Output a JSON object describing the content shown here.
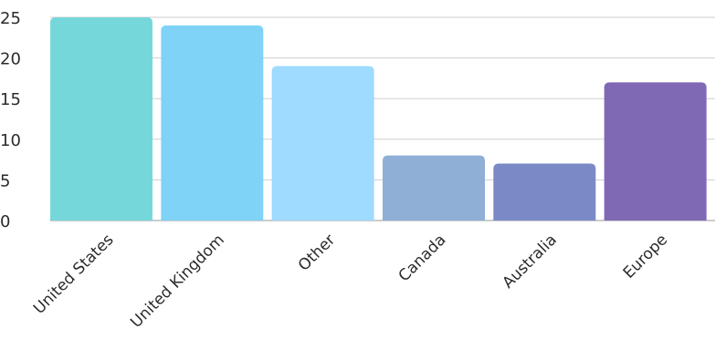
{
  "chart_data": {
    "type": "bar",
    "title": "",
    "xlabel": "",
    "ylabel": "",
    "categories": [
      "United States",
      "United Kingdom",
      "Other",
      "Canada",
      "Australia",
      "Europe"
    ],
    "values": [
      25,
      24,
      19,
      8,
      7,
      17
    ],
    "colors": [
      "#76d7da",
      "#7fd3f6",
      "#9fdaff",
      "#8fafd6",
      "#7b8ac6",
      "#7f69b5"
    ],
    "ylim": [
      0,
      25
    ],
    "yticks": [
      0,
      5,
      10,
      15,
      20,
      25
    ],
    "grid": true,
    "legend": "none"
  }
}
